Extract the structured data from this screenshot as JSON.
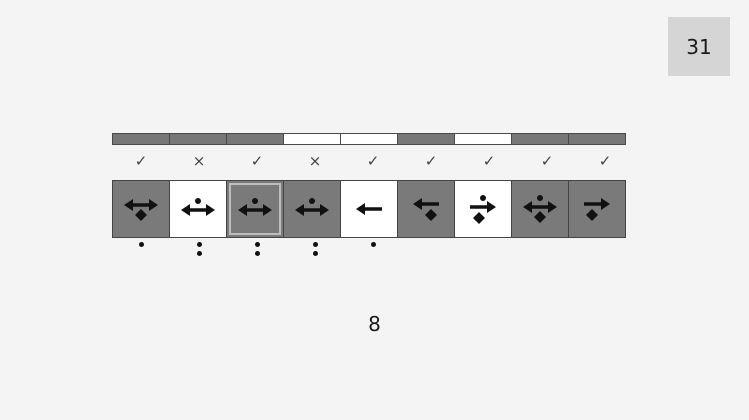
{
  "counter": "31",
  "bottom_number": "8",
  "colors": {
    "dark_tile": "#7a7a7a",
    "light_tile": "#ffffff",
    "background": "#f4f4f4",
    "counter_bg": "#d5d5d5"
  },
  "top_bar": [
    "dark",
    "dark",
    "dark",
    "light",
    "light",
    "dark",
    "light",
    "dark",
    "dark"
  ],
  "marks": [
    "✓",
    "×",
    "✓",
    "×",
    "✓",
    "✓",
    "✓",
    "✓",
    "✓"
  ],
  "tiles": [
    {
      "bg": "dark",
      "icon": "arrow-both-diamond-down-icon",
      "selected": false
    },
    {
      "bg": "light",
      "icon": "arrow-both-dot-up-icon",
      "selected": false
    },
    {
      "bg": "dark",
      "icon": "arrow-both-dot-up-icon",
      "selected": true
    },
    {
      "bg": "dark",
      "icon": "arrow-both-dot-up-icon",
      "selected": false
    },
    {
      "bg": "light",
      "icon": "arrow-left-icon",
      "selected": false
    },
    {
      "bg": "dark",
      "icon": "arrow-left-diamond-down-icon",
      "selected": false
    },
    {
      "bg": "light",
      "icon": "arrow-right-dot-diamond-icon",
      "selected": false
    },
    {
      "bg": "dark",
      "icon": "arrow-both-dot-diamond-icon",
      "selected": false
    },
    {
      "bg": "dark",
      "icon": "arrow-right-diamond-down-icon",
      "selected": false
    }
  ],
  "dot_counts": [
    1,
    2,
    2,
    2,
    1,
    0,
    0,
    0,
    0
  ]
}
